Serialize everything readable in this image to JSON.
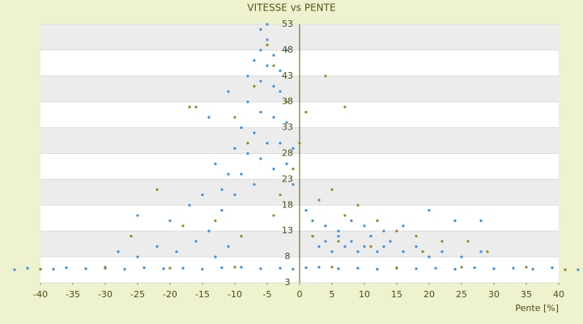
{
  "chart_data": {
    "type": "scatter",
    "title": "VITESSE vs PENTE",
    "x_label": "Pente [%]",
    "xlim": [
      -40,
      40
    ],
    "xticks": [
      -40,
      -35,
      -30,
      -25,
      -20,
      -15,
      -10,
      -5,
      0,
      5,
      10,
      15,
      20,
      25,
      30,
      35,
      40
    ],
    "ylim": [
      3,
      53
    ],
    "yticks": [
      3,
      8,
      13,
      18,
      23,
      28,
      33,
      38,
      43,
      48,
      53
    ],
    "grid": true,
    "series": [
      {
        "color": "#3d8fdb",
        "x": [
          -44,
          -42,
          -38,
          -36,
          -33,
          -30,
          -27,
          -24,
          -21,
          -18,
          -15,
          -12,
          -9,
          -6,
          -3,
          -1,
          1,
          3,
          6,
          9,
          12,
          15,
          18,
          21,
          24,
          27,
          30,
          33,
          36,
          39,
          43,
          -28,
          -25,
          -22,
          -19,
          -16,
          -13,
          -11,
          2,
          3,
          4,
          5,
          6,
          7,
          8,
          9,
          10,
          11,
          12,
          13,
          14,
          16,
          18,
          20,
          22,
          25,
          28,
          -25,
          -20,
          -17,
          -14,
          -12,
          -10,
          1,
          2,
          4,
          6,
          8,
          10,
          13,
          16,
          20,
          24,
          28,
          -9,
          -8,
          -7,
          -6,
          -6,
          -5,
          -5,
          -4,
          -7,
          -6,
          -3,
          -4,
          -3,
          -2,
          -1,
          -8,
          -9,
          -10,
          -11,
          -12,
          -5,
          -4,
          -6,
          -7,
          -2,
          -1,
          -3,
          -4,
          -8,
          -13,
          -15,
          -14,
          -11,
          -6,
          -5,
          -2
        ],
        "y": [
          5.5,
          5.8,
          5.6,
          5.9,
          5.7,
          5.8,
          5.6,
          5.9,
          5.7,
          5.8,
          5.6,
          5.9,
          6,
          5.7,
          5.8,
          5.6,
          5.9,
          6,
          5.7,
          5.8,
          5.6,
          5.9,
          5.7,
          5.8,
          5.6,
          5.9,
          5.7,
          5.8,
          5.6,
          5.9,
          5.5,
          9,
          8,
          10,
          9,
          11,
          8,
          10,
          12,
          10,
          11,
          9,
          12,
          10,
          11,
          9,
          10,
          12,
          9,
          10,
          11,
          9,
          10,
          8,
          9,
          8,
          9,
          16,
          15,
          18,
          13,
          17,
          20,
          17,
          15,
          14,
          13,
          15,
          14,
          13,
          14,
          17,
          15,
          15,
          24,
          28,
          32,
          36,
          42,
          45,
          50,
          47,
          46,
          52,
          40,
          35,
          30,
          26,
          22,
          38,
          33,
          29,
          24,
          21,
          30,
          25,
          27,
          22,
          34,
          29,
          44,
          41,
          43,
          26,
          20,
          35,
          40,
          48,
          53,
          48
        ]
      },
      {
        "color": "#8c8c1e",
        "x": [
          -40,
          -30,
          -20,
          -10,
          5,
          15,
          25,
          35,
          41,
          -26,
          -18,
          -13,
          -9,
          -4,
          -3,
          -1,
          0,
          1,
          -2,
          -4,
          -5,
          -7,
          -8,
          -10,
          -16,
          -17,
          -22,
          3,
          5,
          7,
          9,
          12,
          15,
          18,
          22,
          26,
          29,
          4,
          7,
          2,
          6,
          11,
          19
        ],
        "y": [
          5.6,
          6,
          5.8,
          6,
          6,
          5.8,
          6,
          6,
          5.5,
          12,
          14,
          15,
          12,
          16,
          20,
          25,
          30,
          36,
          38,
          45,
          49,
          41,
          30,
          35,
          37,
          37,
          21,
          19,
          21,
          16,
          18,
          15,
          13,
          12,
          11,
          11,
          9,
          43,
          37,
          12,
          11,
          10,
          9
        ]
      }
    ]
  }
}
